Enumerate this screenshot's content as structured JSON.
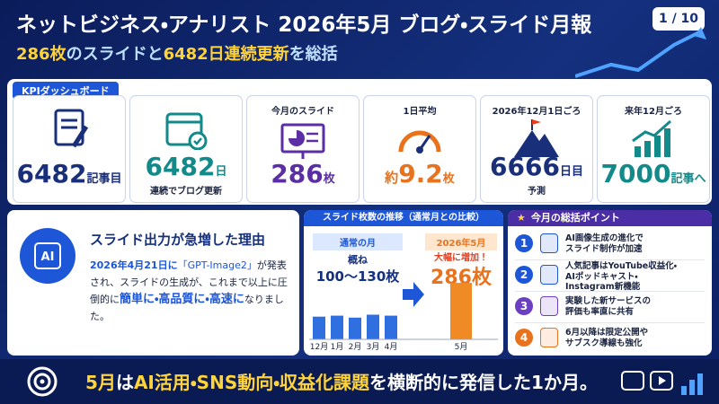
{
  "header": {
    "title": "ネットビジネス・アナリスト 2026年5月 ブログ・スライド月報",
    "subtitle": [
      "286枚",
      "のスライドと",
      "6482日連続更新",
      "を総括"
    ],
    "page": "1 / 10"
  },
  "kpi": {
    "label": "KPIダッシュボード",
    "cards": [
      {
        "value": "6482",
        "unit": "記事目"
      },
      {
        "value": "6482",
        "unit": "日",
        "note": "連続でブログ更新"
      },
      {
        "heading": "今月のスライド",
        "value": "286",
        "unit": "枚"
      },
      {
        "heading": "1日平均",
        "prefix": "約",
        "value": "9.2",
        "unit": "枚"
      },
      {
        "heading": "2026年12月1日ごろ",
        "value": "6666",
        "unit": "日目",
        "note": "予測"
      },
      {
        "heading": "来年12月ごろ",
        "value": "7000",
        "unit": "記事へ"
      }
    ]
  },
  "reason": {
    "title": "スライド出力が急増した理由",
    "icon_label": "AI",
    "body": [
      "2026年4月21日に",
      "「GPT-Image2」",
      "が発表され、スライドの生成が、これまで以上に圧倒的に",
      "簡単に・高品質に・高速に",
      "なりました。"
    ]
  },
  "trend": {
    "title": "スライド枚数の推移（通常月との比較）",
    "normal": {
      "label": "通常の月",
      "approx": "概ね",
      "range": "100〜130枚"
    },
    "may": {
      "label": "2026年5月",
      "callout": "大幅に増加！",
      "value": "286枚"
    },
    "chart": {
      "categories": [
        "12月",
        "1月",
        "2月",
        "3月",
        "4月",
        "5月"
      ],
      "values": [
        115,
        120,
        110,
        125,
        120,
        286
      ],
      "ylim": [
        0,
        300
      ]
    }
  },
  "points": {
    "title": "今月の総括ポイント",
    "items": [
      {
        "number": "1",
        "lines": [
          "AI画像生成の進化で",
          "スライド制作が加速"
        ]
      },
      {
        "number": "2",
        "lines": [
          "人気記事はYouTube収益化・",
          "AIポッドキャスト・",
          "Instagram新機能"
        ]
      },
      {
        "number": "3",
        "lines": [
          "実験した新サービスの",
          "評価も率直に共有"
        ]
      },
      {
        "number": "4",
        "lines": [
          "6月以降は限定公開や",
          "サブスク導線も強化"
        ]
      }
    ]
  },
  "footer": [
    "5月",
    "は",
    "AI活用・SNS動向・収益化課題",
    "を横断的に発信した1か月。"
  ]
}
